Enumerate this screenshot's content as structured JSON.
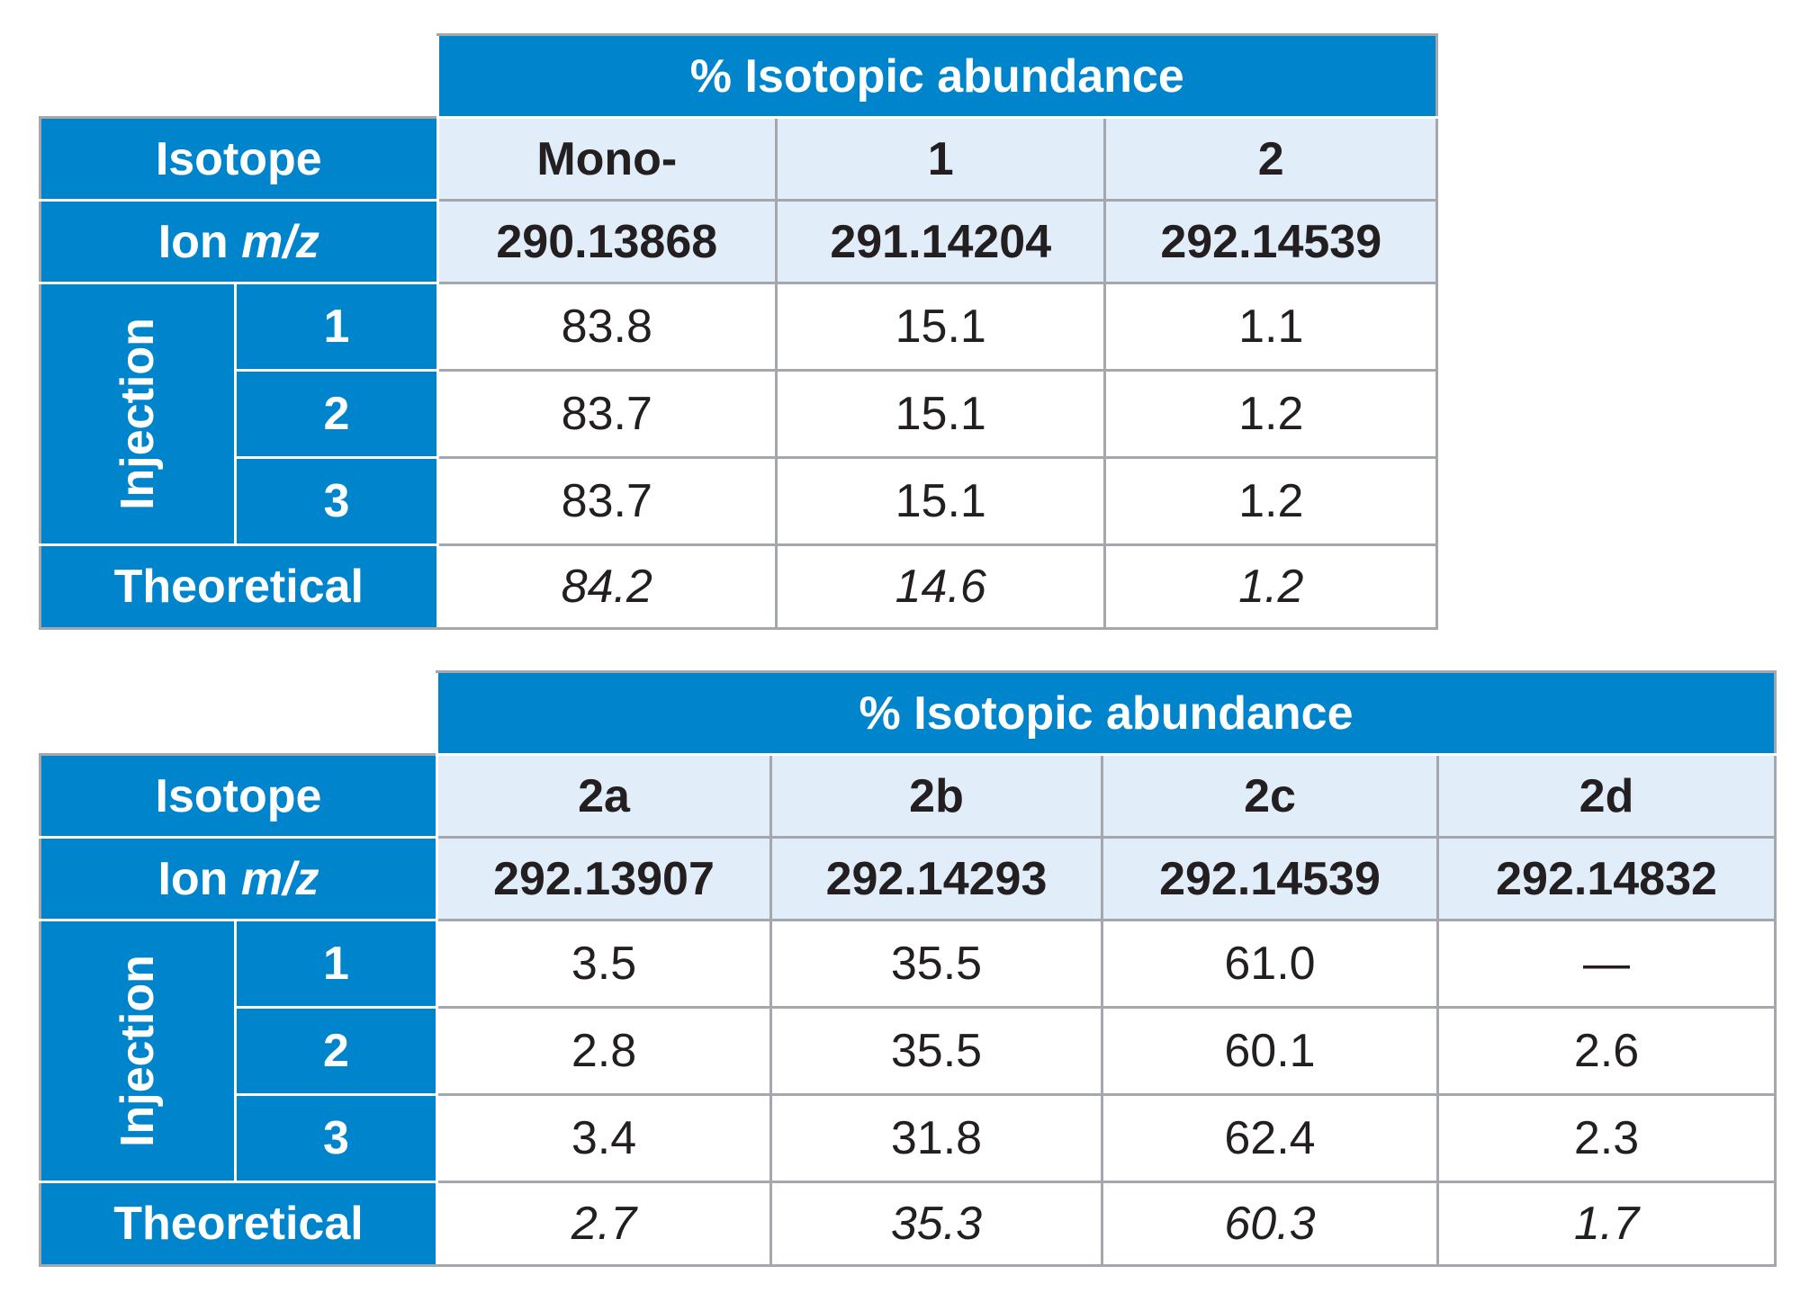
{
  "tables": [
    {
      "group_header": "% Isotopic abundance",
      "isotope_label": "Isotope",
      "ion_label_prefix": "Ion ",
      "ion_label_mz": "m/z",
      "injection_label": "Injection",
      "theoretical_label": "Theoretical",
      "isotopes": [
        "Mono-",
        "1",
        "2"
      ],
      "ion_mz": [
        "290.13868",
        "291.14204",
        "292.14539"
      ],
      "injections": [
        {
          "label": "1",
          "values": [
            "83.8",
            "15.1",
            "1.1"
          ]
        },
        {
          "label": "2",
          "values": [
            "83.7",
            "15.1",
            "1.2"
          ]
        },
        {
          "label": "3",
          "values": [
            "83.7",
            "15.1",
            "1.2"
          ]
        }
      ],
      "theoretical": [
        "84.2",
        "14.6",
        "1.2"
      ]
    },
    {
      "group_header": "% Isotopic abundance",
      "isotope_label": "Isotope",
      "ion_label_prefix": "Ion ",
      "ion_label_mz": "m/z",
      "injection_label": "Injection",
      "theoretical_label": "Theoretical",
      "isotopes": [
        "2a",
        "2b",
        "2c",
        "2d"
      ],
      "ion_mz": [
        "292.13907",
        "292.14293",
        "292.14539",
        "292.14832"
      ],
      "injections": [
        {
          "label": "1",
          "values": [
            "3.5",
            "35.5",
            "61.0",
            "—"
          ]
        },
        {
          "label": "2",
          "values": [
            "2.8",
            "35.5",
            "60.1",
            "2.6"
          ]
        },
        {
          "label": "3",
          "values": [
            "3.4",
            "31.8",
            "62.4",
            "2.3"
          ]
        }
      ],
      "theoretical": [
        "2.7",
        "35.3",
        "60.3",
        "1.7"
      ]
    }
  ],
  "colors": {
    "header_blue": "#0085cd",
    "header_light": "#e1edf8",
    "border_gray": "#a4a8ad",
    "text_dark": "#231f20"
  }
}
